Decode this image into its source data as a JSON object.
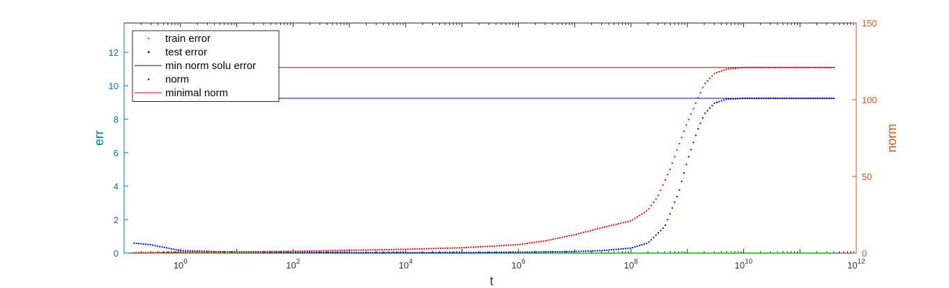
{
  "chart_data": {
    "type": "scatter",
    "xscale": "log",
    "xlim": [
      0.1,
      1000000000000
    ],
    "xlabel": "t",
    "xticks": [
      1,
      100,
      10000,
      1000000,
      100000000,
      10000000000,
      1000000000000
    ],
    "xtick_labels": [
      {
        "base": "10",
        "exp": "0"
      },
      {
        "base": "10",
        "exp": "2"
      },
      {
        "base": "10",
        "exp": "4"
      },
      {
        "base": "10",
        "exp": "6"
      },
      {
        "base": "10",
        "exp": "8"
      },
      {
        "base": "10",
        "exp": "10"
      },
      {
        "base": "10",
        "exp": "12"
      }
    ],
    "left_axis": {
      "label": "err",
      "ylim": [
        0,
        13.75
      ],
      "ticks": [
        0,
        2,
        4,
        6,
        8,
        10,
        12
      ],
      "tick_labels": [
        "0",
        "2",
        "4",
        "6",
        "8",
        "10",
        "12"
      ],
      "color": "#0072BD"
    },
    "right_axis": {
      "label": "norm",
      "ylim": [
        0,
        150
      ],
      "ticks": [
        0,
        50,
        100,
        150
      ],
      "tick_labels": [
        "0",
        "50",
        "100",
        "150"
      ],
      "color": "#D95319"
    },
    "legend_position": "top-left",
    "series": [
      {
        "name": "train error",
        "style": "dots",
        "axis": "left",
        "color": "#00FF00",
        "x_range": [
          0.15,
          400000000000
        ],
        "points": 300,
        "profile": [
          [
            0.15,
            0.02
          ],
          [
            10,
            0.0
          ],
          [
            400000000000,
            0.0
          ]
        ]
      },
      {
        "name": "test error",
        "style": "dots",
        "axis": "left",
        "color": "#0000FF",
        "x_range": [
          0.15,
          400000000000
        ],
        "points": 300,
        "profile": [
          [
            0.15,
            0.6
          ],
          [
            0.3,
            0.5
          ],
          [
            1,
            0.15
          ],
          [
            10,
            0.06
          ],
          [
            1000,
            0.03
          ],
          [
            100000,
            0.03
          ],
          [
            1000000,
            0.05
          ],
          [
            10000000,
            0.1
          ],
          [
            30000000,
            0.15
          ],
          [
            100000000,
            0.3
          ],
          [
            200000000,
            0.6
          ],
          [
            400000000,
            1.6
          ],
          [
            700000000,
            3.6
          ],
          [
            1000000000,
            5.5
          ],
          [
            1500000000,
            7.3
          ],
          [
            2000000000,
            8.3
          ],
          [
            3000000000,
            8.95
          ],
          [
            5000000000,
            9.2
          ],
          [
            10000000000,
            9.25
          ],
          [
            400000000000,
            9.25
          ]
        ]
      },
      {
        "name": "min norm solu error",
        "style": "line",
        "axis": "left",
        "color": "#0000AA",
        "x_range": [
          0.15,
          400000000000
        ],
        "value": 9.25
      },
      {
        "name": "norm",
        "style": "dots",
        "axis": "right",
        "color": "#FF0000",
        "x_range": [
          0.15,
          400000000000
        ],
        "points": 300,
        "profile": [
          [
            0.15,
            0.2
          ],
          [
            1,
            0.5
          ],
          [
            100,
            1.2
          ],
          [
            10000,
            2.5
          ],
          [
            100000,
            3.5
          ],
          [
            1000000,
            5.5
          ],
          [
            3000000,
            8
          ],
          [
            10000000,
            12
          ],
          [
            30000000,
            16.5
          ],
          [
            100000000,
            21
          ],
          [
            200000000,
            28
          ],
          [
            300000000,
            37
          ],
          [
            500000000,
            55
          ],
          [
            700000000,
            70
          ],
          [
            1000000000,
            85
          ],
          [
            1500000000,
            100
          ],
          [
            2000000000,
            110
          ],
          [
            3000000000,
            117
          ],
          [
            5000000000,
            120
          ],
          [
            10000000000,
            121
          ],
          [
            400000000000,
            121
          ]
        ]
      },
      {
        "name": "minimal norm",
        "style": "line",
        "axis": "right",
        "color": "#CC0000",
        "x_range": [
          0.15,
          400000000000
        ],
        "value": 121
      }
    ]
  }
}
